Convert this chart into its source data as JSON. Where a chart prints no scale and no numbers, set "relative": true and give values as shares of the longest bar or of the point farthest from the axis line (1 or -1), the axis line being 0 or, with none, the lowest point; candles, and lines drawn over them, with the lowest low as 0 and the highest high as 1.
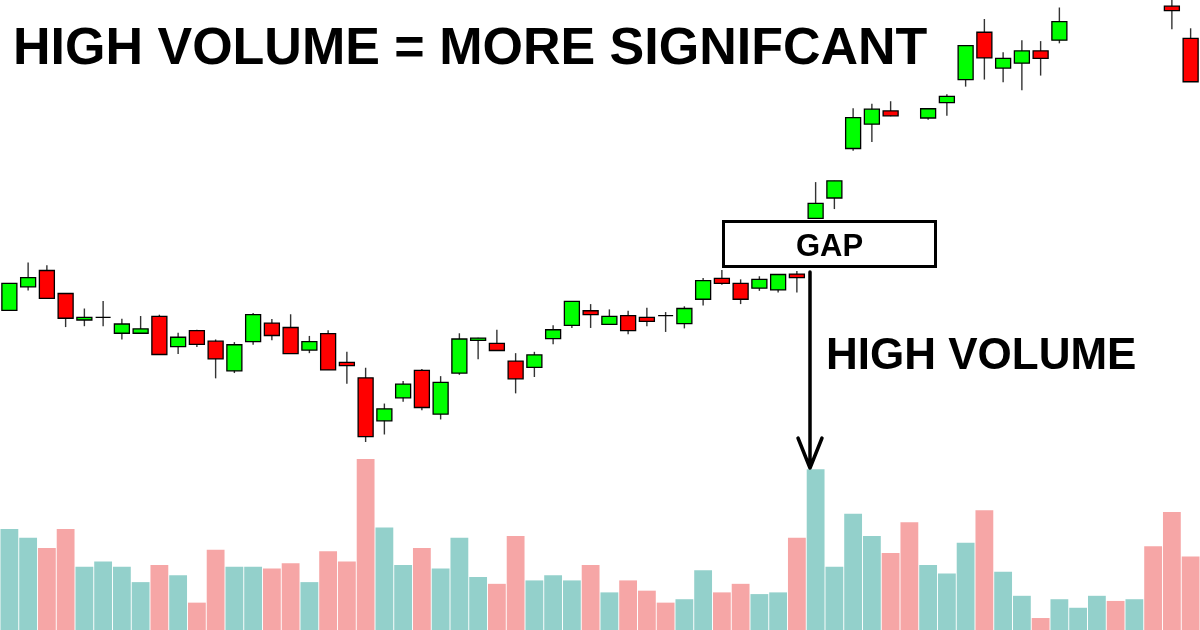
{
  "chart_data": [
    {
      "type": "candlestick",
      "title": "HIGH VOLUME = MORE SIGNIFCANT",
      "relative": true,
      "tick_labels": false,
      "categories": [
        null,
        null,
        null,
        null,
        null,
        null,
        null,
        null,
        null,
        null,
        null,
        null,
        null,
        null,
        null,
        null,
        null,
        null,
        null,
        null,
        null,
        null,
        null,
        null,
        null,
        null,
        null,
        null,
        null,
        null,
        null,
        null,
        null,
        null,
        null,
        null,
        null,
        null,
        null,
        null,
        null,
        null,
        null,
        null,
        null,
        null,
        null,
        null,
        null,
        null,
        null,
        null,
        null,
        null,
        null,
        null,
        null,
        null,
        null,
        null,
        null,
        null,
        null,
        null
      ],
      "ohlc": [
        [
          0.298,
          0.359,
          0.298,
          0.359
        ],
        [
          0.351,
          0.406,
          0.343,
          0.372
        ],
        [
          0.388,
          0.4,
          0.325,
          0.325
        ],
        [
          0.336,
          0.337,
          0.26,
          0.28
        ],
        [
          0.276,
          0.302,
          0.262,
          0.282
        ],
        [
          0.282,
          0.319,
          0.262,
          0.282
        ],
        [
          0.246,
          0.279,
          0.232,
          0.267
        ],
        [
          0.246,
          0.285,
          0.246,
          0.256
        ],
        [
          0.284,
          0.288,
          0.198,
          0.198
        ],
        [
          0.216,
          0.247,
          0.199,
          0.237
        ],
        [
          0.252,
          0.254,
          0.215,
          0.221
        ],
        [
          0.228,
          0.232,
          0.144,
          0.188
        ],
        [
          0.161,
          0.226,
          0.156,
          0.22
        ],
        [
          0.227,
          0.292,
          0.22,
          0.288
        ],
        [
          0.269,
          0.278,
          0.23,
          0.241
        ],
        [
          0.259,
          0.289,
          0.2,
          0.2
        ],
        [
          0.208,
          0.24,
          0.201,
          0.227
        ],
        [
          0.245,
          0.253,
          0.163,
          0.163
        ],
        [
          0.18,
          0.204,
          0.132,
          0.173
        ],
        [
          0.145,
          0.168,
          0,
          0.012
        ],
        [
          0.048,
          0.087,
          0.017,
          0.075
        ],
        [
          0.1,
          0.138,
          0.091,
          0.131
        ],
        [
          0.162,
          0.165,
          0.072,
          0.078
        ],
        [
          0.063,
          0.149,
          0.051,
          0.135
        ],
        [
          0.156,
          0.246,
          0.152,
          0.233
        ],
        [
          0.23,
          0.236,
          0.187,
          0.235
        ],
        [
          0.223,
          0.254,
          0.207,
          0.207
        ],
        [
          0.183,
          0.201,
          0.11,
          0.143
        ],
        [
          0.169,
          0.204,
          0.147,
          0.197
        ],
        [
          0.234,
          0.264,
          0.221,
          0.254
        ],
        [
          0.264,
          0.318,
          0.258,
          0.318
        ],
        [
          0.297,
          0.312,
          0.258,
          0.288
        ],
        [
          0.266,
          0.3,
          0.266,
          0.284
        ],
        [
          0.286,
          0.297,
          0.244,
          0.252
        ],
        [
          0.282,
          0.304,
          0.262,
          0.273
        ],
        [
          0.286,
          0.294,
          0.249,
          0.286
        ],
        [
          0.268,
          0.307,
          0.257,
          0.302
        ],
        [
          0.323,
          0.371,
          0.309,
          0.365
        ],
        [
          0.37,
          0.389,
          0.356,
          0.359
        ],
        [
          0.359,
          0.368,
          0.312,
          0.323
        ],
        [
          0.348,
          0.375,
          0.342,
          0.368
        ],
        [
          0.344,
          0.379,
          0.338,
          0.379
        ],
        [
          0.38,
          0.387,
          0.338,
          0.372
        ],
        [
          0.506,
          0.588,
          0.506,
          0.54
        ],
        [
          0.552,
          0.591,
          0.527,
          0.591
        ],
        [
          0.664,
          0.755,
          0.659,
          0.734
        ],
        [
          0.719,
          0.765,
          0.679,
          0.753
        ],
        [
          0.749,
          0.771,
          0.737,
          0.738
        ],
        null,
        [
          0.733,
          0.754,
          0.729,
          0.754
        ],
        [
          0.768,
          0.787,
          0.738,
          0.782
        ],
        [
          0.82,
          0.897,
          0.804,
          0.897
        ],
        [
          0.927,
          0.957,
          0.82,
          0.869
        ],
        [
          0.846,
          0.882,
          0.814,
          0.868
        ],
        [
          0.857,
          0.909,
          0.796,
          0.885
        ],
        [
          0.885,
          0.907,
          0.829,
          0.868
        ],
        [
          0.909,
          0.983,
          0.902,
          0.951
        ],
        null,
        null,
        null,
        null,
        null,
        [
          0.986,
          1,
          0.934,
          0.976
        ],
        [
          0.913,
          0.936,
          0.815,
          0.815
        ]
      ],
      "colors": [
        "#00ff00",
        "#00ff00",
        "#ff0000",
        "#ff0000",
        "#00ff00",
        "#000000",
        "#00ff00",
        "#00ff00",
        "#ff0000",
        "#00ff00",
        "#ff0000",
        "#ff0000",
        "#00ff00",
        "#00ff00",
        "#ff0000",
        "#ff0000",
        "#00ff00",
        "#ff0000",
        "#ff0000",
        "#ff0000",
        "#00ff00",
        "#00ff00",
        "#ff0000",
        "#00ff00",
        "#00ff00",
        "#00ff00",
        "#ff0000",
        "#ff0000",
        "#00ff00",
        "#00ff00",
        "#00ff00",
        "#ff0000",
        "#00ff00",
        "#ff0000",
        "#ff0000",
        "#000000",
        "#00ff00",
        "#00ff00",
        "#ff0000",
        "#ff0000",
        "#00ff00",
        "#00ff00",
        "#ff0000",
        "#00ff00",
        "#00ff00",
        "#00ff00",
        "#00ff00",
        "#ff0000",
        null,
        "#00ff00",
        "#00ff00",
        "#00ff00",
        "#ff0000",
        "#00ff00",
        "#00ff00",
        "#ff0000",
        "#00ff00",
        null,
        null,
        null,
        null,
        null,
        "#ff0000",
        "#ff0000"
      ],
      "annotations": [
        "GAP"
      ]
    },
    {
      "type": "bar",
      "relative": true,
      "tick_labels": false,
      "categories": [
        null,
        null,
        null,
        null,
        null,
        null,
        null,
        null,
        null,
        null,
        null,
        null,
        null,
        null,
        null,
        null,
        null,
        null,
        null,
        null,
        null,
        null,
        null,
        null,
        null,
        null,
        null,
        null,
        null,
        null,
        null,
        null,
        null,
        null,
        null,
        null,
        null,
        null,
        null,
        null,
        null,
        null,
        null,
        null,
        null,
        null,
        null,
        null,
        null,
        null,
        null,
        null,
        null,
        null,
        null,
        null,
        null,
        null,
        null,
        null,
        null,
        null,
        null,
        null
      ],
      "values": [
        0.59,
        0.54,
        0.48,
        0.59,
        0.37,
        0.4,
        0.37,
        0.28,
        0.38,
        0.32,
        0.16,
        0.47,
        0.37,
        0.37,
        0.36,
        0.39,
        0.28,
        0.46,
        0.4,
        1,
        0.6,
        0.38,
        0.48,
        0.36,
        0.54,
        0.31,
        0.27,
        0.55,
        0.29,
        0.32,
        0.29,
        0.38,
        0.22,
        0.29,
        0.23,
        0.16,
        0.18,
        0.35,
        0.22,
        0.27,
        0.21,
        0.22,
        0.54,
        0.94,
        0.37,
        0.68,
        0.55,
        0.45,
        0.63,
        0.38,
        0.33,
        0.51,
        0.7,
        0.34,
        0.2,
        0.07,
        0.18,
        0.13,
        0.2,
        0.17,
        0.18,
        0.49,
        0.69,
        0.43
      ],
      "colors": [
        "#93d0cb",
        "#93d0cb",
        "#f6a6a6",
        "#f6a6a6",
        "#93d0cb",
        "#93d0cb",
        "#93d0cb",
        "#93d0cb",
        "#f6a6a6",
        "#93d0cb",
        "#f6a6a6",
        "#f6a6a6",
        "#93d0cb",
        "#93d0cb",
        "#f6a6a6",
        "#f6a6a6",
        "#93d0cb",
        "#f6a6a6",
        "#f6a6a6",
        "#f6a6a6",
        "#93d0cb",
        "#93d0cb",
        "#f6a6a6",
        "#93d0cb",
        "#93d0cb",
        "#93d0cb",
        "#f6a6a6",
        "#f6a6a6",
        "#93d0cb",
        "#93d0cb",
        "#93d0cb",
        "#f6a6a6",
        "#93d0cb",
        "#f6a6a6",
        "#f6a6a6",
        "#f6a6a6",
        "#93d0cb",
        "#93d0cb",
        "#f6a6a6",
        "#f6a6a6",
        "#93d0cb",
        "#93d0cb",
        "#f6a6a6",
        "#93d0cb",
        "#93d0cb",
        "#93d0cb",
        "#93d0cb",
        "#f6a6a6",
        "#f6a6a6",
        "#93d0cb",
        "#93d0cb",
        "#93d0cb",
        "#f6a6a6",
        "#93d0cb",
        "#93d0cb",
        "#f6a6a6",
        "#93d0cb",
        "#93d0cb",
        "#93d0cb",
        "#f6a6a6",
        "#93d0cb",
        "#f6a6a6",
        "#f6a6a6",
        "#f6a6a6"
      ],
      "annotations": [
        "HIGH VOLUME"
      ]
    }
  ]
}
